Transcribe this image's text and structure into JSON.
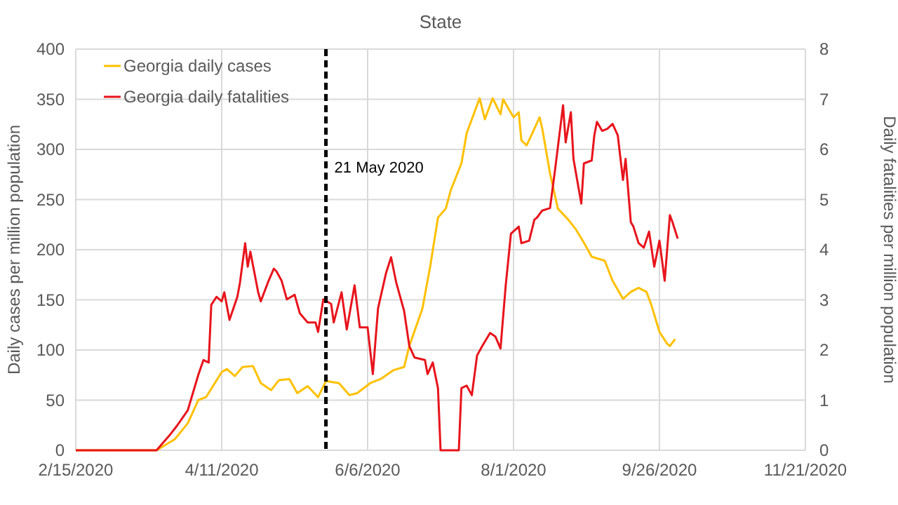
{
  "chart_data": {
    "type": "line",
    "title": "State",
    "ylabel": "Daily cases per million population",
    "y2label": "Daily fatalities per million population",
    "xlim": [
      "2020-02-15",
      "2020-11-21"
    ],
    "xticks": [
      {
        "value": "2020-02-15",
        "label": "2/15/2020"
      },
      {
        "value": "2020-04-11",
        "label": "4/11/2020"
      },
      {
        "value": "2020-06-06",
        "label": "6/6/2020"
      },
      {
        "value": "2020-08-01",
        "label": "8/1/2020"
      },
      {
        "value": "2020-09-26",
        "label": "9/26/2020"
      },
      {
        "value": "2020-11-21",
        "label": "11/21/2020"
      }
    ],
    "ylim": [
      0,
      400
    ],
    "yticks": [
      0,
      50,
      100,
      150,
      200,
      250,
      300,
      350,
      400
    ],
    "y2lim": [
      0,
      8
    ],
    "y2ticks": [
      0,
      1,
      2,
      3,
      4,
      5,
      6,
      7,
      8
    ],
    "grid": true,
    "legend": "top left",
    "marker": "none",
    "line_style": "solid",
    "ref_lines": [
      {
        "axis": "x",
        "value": "2020-05-21",
        "label": "21 May 2020",
        "color": "#000000",
        "line_style": "dashed"
      }
    ],
    "series": [
      {
        "name": "Georgia daily cases",
        "color": "#ffc000",
        "x": [
          "2020-02-15",
          "2020-03-17",
          "2020-03-24",
          "2020-03-29",
          "2020-04-02",
          "2020-04-05",
          "2020-04-11",
          "2020-04-13",
          "2020-04-16",
          "2020-04-19",
          "2020-04-23",
          "2020-04-26",
          "2020-04-30",
          "2020-05-03",
          "2020-05-07",
          "2020-05-10",
          "2020-05-14",
          "2020-05-18",
          "2020-05-21",
          "2020-05-26",
          "2020-05-30",
          "2020-06-02",
          "2020-06-07",
          "2020-06-11",
          "2020-06-16",
          "2020-06-20",
          "2020-06-22",
          "2020-06-27",
          "2020-06-30",
          "2020-07-03",
          "2020-07-06",
          "2020-07-08",
          "2020-07-12",
          "2020-07-14",
          "2020-07-16",
          "2020-07-19",
          "2020-07-21",
          "2020-07-24",
          "2020-07-27",
          "2020-07-28",
          "2020-08-01",
          "2020-08-03",
          "2020-08-04",
          "2020-08-06",
          "2020-08-08",
          "2020-08-11",
          "2020-08-12",
          "2020-08-15",
          "2020-08-18",
          "2020-08-22",
          "2020-08-25",
          "2020-08-28",
          "2020-08-31",
          "2020-09-05",
          "2020-09-08",
          "2020-09-12",
          "2020-09-15",
          "2020-09-18",
          "2020-09-21",
          "2020-09-23",
          "2020-09-26",
          "2020-09-29",
          "2020-09-30",
          "2020-10-02"
        ],
        "values": [
          0,
          0,
          11,
          27,
          50,
          53,
          78,
          81,
          74,
          83,
          84,
          67,
          60,
          70,
          71,
          57,
          64,
          53,
          69,
          67,
          55,
          57,
          67,
          71,
          80,
          83,
          104,
          141,
          183,
          232,
          241,
          260,
          286,
          316,
          330,
          351,
          330,
          351,
          335,
          350,
          332,
          337,
          309,
          304,
          315,
          332,
          321,
          276,
          241,
          230,
          220,
          207,
          193,
          189,
          169,
          151,
          158,
          162,
          158,
          144,
          118,
          106,
          104,
          111
        ]
      },
      {
        "name": "Georgia daily fatalities",
        "color": "#e8141c",
        "axis": "y2",
        "x": [
          "2020-02-15",
          "2020-03-17",
          "2020-03-22",
          "2020-03-25",
          "2020-03-29",
          "2020-04-02",
          "2020-04-04",
          "2020-04-06",
          "2020-04-07",
          "2020-04-09",
          "2020-04-11",
          "2020-04-12",
          "2020-04-14",
          "2020-04-17",
          "2020-04-18",
          "2020-04-20",
          "2020-04-21",
          "2020-04-22",
          "2020-04-25",
          "2020-04-26",
          "2020-04-29",
          "2020-05-01",
          "2020-05-02",
          "2020-05-04",
          "2020-05-06",
          "2020-05-09",
          "2020-05-11",
          "2020-05-14",
          "2020-05-17",
          "2020-05-18",
          "2020-05-20",
          "2020-05-23",
          "2020-05-24",
          "2020-05-27",
          "2020-05-29",
          "2020-06-01",
          "2020-06-03",
          "2020-06-06",
          "2020-06-08",
          "2020-06-10",
          "2020-06-13",
          "2020-06-15",
          "2020-06-17",
          "2020-06-20",
          "2020-06-22",
          "2020-06-24",
          "2020-06-28",
          "2020-06-29",
          "2020-07-01",
          "2020-07-03",
          "2020-07-04",
          "2020-07-11",
          "2020-07-12",
          "2020-07-14",
          "2020-07-16",
          "2020-07-18",
          "2020-07-20",
          "2020-07-23",
          "2020-07-25",
          "2020-07-27",
          "2020-07-29",
          "2020-07-31",
          "2020-08-03",
          "2020-08-04",
          "2020-08-07",
          "2020-08-09",
          "2020-08-10",
          "2020-08-12",
          "2020-08-15",
          "2020-08-17",
          "2020-08-20",
          "2020-08-21",
          "2020-08-23",
          "2020-08-24",
          "2020-08-27",
          "2020-08-28",
          "2020-08-31",
          "2020-09-01",
          "2020-09-02",
          "2020-09-04",
          "2020-09-06",
          "2020-09-08",
          "2020-09-10",
          "2020-09-12",
          "2020-09-13",
          "2020-09-15",
          "2020-09-16",
          "2020-09-18",
          "2020-09-20",
          "2020-09-22",
          "2020-09-24",
          "2020-09-26",
          "2020-09-28",
          "2020-09-30",
          "2020-10-01",
          "2020-10-03"
        ],
        "values": [
          0,
          0,
          0.3,
          0.5,
          0.8,
          1.5,
          1.8,
          1.75,
          2.9,
          3.06,
          2.97,
          3.15,
          2.6,
          3.06,
          3.34,
          4.13,
          3.66,
          3.96,
          3.15,
          2.97,
          3.38,
          3.62,
          3.57,
          3.38,
          3.01,
          3.1,
          2.73,
          2.55,
          2.55,
          2.36,
          3.01,
          2.92,
          2.55,
          3.15,
          2.41,
          3.29,
          2.45,
          2.45,
          1.52,
          2.83,
          3.52,
          3.85,
          3.34,
          2.78,
          2.08,
          1.85,
          1.8,
          1.52,
          1.75,
          1.24,
          0,
          0,
          1.24,
          1.29,
          1.1,
          1.89,
          2.08,
          2.34,
          2.27,
          2.03,
          3.29,
          4.32,
          4.46,
          4.13,
          4.18,
          4.6,
          4.64,
          4.78,
          4.83,
          5.62,
          6.88,
          6.14,
          6.74,
          5.81,
          4.92,
          5.72,
          5.78,
          6.28,
          6.55,
          6.37,
          6.41,
          6.51,
          6.28,
          5.39,
          5.81,
          4.55,
          4.46,
          4.13,
          4.04,
          4.36,
          3.66,
          4.18,
          3.38,
          4.69,
          4.55,
          4.22
        ]
      }
    ]
  }
}
